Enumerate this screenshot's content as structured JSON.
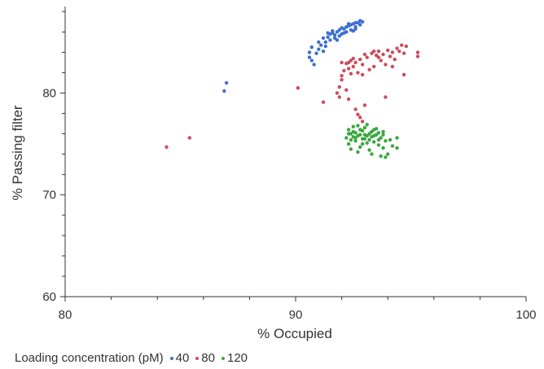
{
  "chart_data": {
    "type": "scatter",
    "title": "",
    "xlabel": "% Occupied",
    "ylabel": "% Passing filter",
    "xlim": [
      80,
      100
    ],
    "ylim": [
      60,
      88.5
    ],
    "x_ticks": [
      80,
      90,
      100
    ],
    "y_ticks": [
      60,
      70,
      80
    ],
    "grid": false,
    "legend": {
      "title": "Loading concentration (pM)",
      "placement": "bottom-left"
    },
    "series": [
      {
        "name": "40",
        "color": "#3e6fd1",
        "points": [
          [
            86.9,
            80.2
          ],
          [
            87.0,
            81.0
          ],
          [
            90.6,
            83.5
          ],
          [
            90.6,
            84.0
          ],
          [
            90.7,
            83.2
          ],
          [
            90.8,
            82.8
          ],
          [
            90.7,
            84.5
          ],
          [
            90.9,
            83.9
          ],
          [
            91.0,
            84.3
          ],
          [
            91.1,
            84.7
          ],
          [
            91.2,
            84.1
          ],
          [
            91.3,
            85.0
          ],
          [
            91.3,
            84.6
          ],
          [
            91.4,
            85.5
          ],
          [
            91.5,
            85.2
          ],
          [
            91.6,
            85.9
          ],
          [
            91.7,
            85.4
          ],
          [
            91.8,
            86.0
          ],
          [
            91.9,
            85.6
          ],
          [
            91.9,
            86.2
          ],
          [
            92.0,
            85.8
          ],
          [
            92.1,
            86.3
          ],
          [
            92.2,
            86.0
          ],
          [
            92.3,
            86.6
          ],
          [
            92.4,
            86.2
          ],
          [
            92.5,
            86.8
          ],
          [
            92.6,
            86.5
          ],
          [
            92.7,
            86.9
          ],
          [
            92.8,
            86.7
          ],
          [
            92.9,
            87.0
          ],
          [
            91.5,
            85.8
          ],
          [
            91.7,
            85.7
          ],
          [
            92.0,
            86.4
          ],
          [
            92.2,
            86.5
          ],
          [
            92.4,
            86.7
          ],
          [
            92.6,
            86.3
          ],
          [
            92.8,
            87.1
          ],
          [
            91.2,
            85.4
          ],
          [
            91.0,
            85.0
          ],
          [
            91.8,
            85.2
          ],
          [
            92.1,
            85.9
          ],
          [
            92.6,
            86.9
          ],
          [
            91.4,
            85.9
          ],
          [
            91.6,
            86.1
          ],
          [
            92.3,
            86.8
          ],
          [
            92.5,
            86.1
          ]
        ]
      },
      {
        "name": "80",
        "color": "#cc4b5c",
        "points": [
          [
            84.4,
            74.7
          ],
          [
            85.4,
            75.6
          ],
          [
            90.1,
            80.5
          ],
          [
            91.2,
            79.1
          ],
          [
            91.8,
            80.0
          ],
          [
            91.9,
            79.6
          ],
          [
            91.9,
            80.6
          ],
          [
            92.0,
            81.3
          ],
          [
            92.0,
            81.7
          ],
          [
            92.1,
            82.2
          ],
          [
            92.2,
            82.9
          ],
          [
            92.3,
            82.4
          ],
          [
            92.4,
            81.9
          ],
          [
            92.4,
            83.2
          ],
          [
            92.5,
            82.6
          ],
          [
            92.6,
            83.0
          ],
          [
            92.7,
            82.0
          ],
          [
            92.8,
            83.3
          ],
          [
            92.9,
            82.8
          ],
          [
            92.2,
            80.3
          ],
          [
            92.3,
            79.4
          ],
          [
            92.6,
            78.4
          ],
          [
            92.8,
            77.6
          ],
          [
            92.9,
            77.2
          ],
          [
            92.7,
            77.9
          ],
          [
            93.0,
            78.8
          ],
          [
            93.1,
            83.5
          ],
          [
            93.2,
            82.3
          ],
          [
            93.3,
            83.9
          ],
          [
            93.4,
            82.6
          ],
          [
            93.5,
            83.7
          ],
          [
            93.6,
            84.1
          ],
          [
            93.7,
            83.2
          ],
          [
            93.8,
            83.8
          ],
          [
            93.9,
            82.8
          ],
          [
            94.0,
            84.2
          ],
          [
            94.1,
            83.6
          ],
          [
            94.2,
            84.0
          ],
          [
            94.3,
            83.3
          ],
          [
            94.4,
            84.4
          ],
          [
            94.5,
            84.1
          ],
          [
            94.6,
            84.7
          ],
          [
            94.7,
            83.9
          ],
          [
            94.8,
            84.6
          ],
          [
            94.7,
            81.8
          ],
          [
            95.3,
            84.0
          ],
          [
            95.3,
            83.6
          ],
          [
            93.9,
            79.6
          ],
          [
            92.5,
            83.4
          ],
          [
            93.0,
            83.8
          ],
          [
            92.3,
            83.0
          ],
          [
            93.6,
            83.5
          ],
          [
            94.2,
            82.6
          ],
          [
            92.9,
            81.8
          ],
          [
            93.4,
            84.1
          ],
          [
            92.0,
            83.0
          ]
        ]
      },
      {
        "name": "120",
        "color": "#3aa73e",
        "points": [
          [
            92.3,
            76.4
          ],
          [
            92.4,
            76.0
          ],
          [
            92.5,
            75.7
          ],
          [
            92.5,
            76.2
          ],
          [
            92.6,
            75.3
          ],
          [
            92.7,
            76.8
          ],
          [
            92.8,
            75.9
          ],
          [
            92.8,
            74.7
          ],
          [
            92.9,
            76.3
          ],
          [
            93.0,
            75.5
          ],
          [
            93.0,
            76.6
          ],
          [
            93.1,
            75.1
          ],
          [
            93.2,
            76.0
          ],
          [
            93.2,
            74.4
          ],
          [
            93.3,
            75.7
          ],
          [
            93.4,
            76.4
          ],
          [
            93.4,
            75.2
          ],
          [
            93.5,
            75.9
          ],
          [
            93.6,
            74.9
          ],
          [
            93.6,
            76.1
          ],
          [
            93.7,
            75.6
          ],
          [
            93.8,
            74.6
          ],
          [
            93.8,
            76.2
          ],
          [
            93.9,
            75.3
          ],
          [
            94.0,
            74.0
          ],
          [
            94.1,
            75.4
          ],
          [
            94.2,
            74.8
          ],
          [
            94.4,
            75.6
          ],
          [
            94.4,
            74.6
          ],
          [
            92.3,
            75.0
          ],
          [
            92.4,
            74.5
          ],
          [
            92.5,
            76.7
          ],
          [
            92.6,
            76.1
          ],
          [
            92.7,
            74.2
          ],
          [
            92.9,
            75.0
          ],
          [
            93.1,
            76.9
          ],
          [
            93.3,
            74.0
          ],
          [
            93.5,
            76.5
          ],
          [
            93.7,
            73.8
          ],
          [
            93.9,
            73.7
          ],
          [
            92.2,
            75.6
          ],
          [
            92.3,
            76.0
          ],
          [
            92.6,
            75.6
          ],
          [
            93.0,
            75.9
          ],
          [
            93.2,
            75.4
          ],
          [
            93.4,
            75.8
          ],
          [
            92.8,
            76.4
          ],
          [
            93.6,
            75.4
          ],
          [
            92.9,
            75.5
          ],
          [
            93.1,
            75.8
          ],
          [
            93.3,
            76.2
          ],
          [
            92.4,
            75.4
          ],
          [
            93.8,
            75.9
          ],
          [
            92.7,
            75.8
          ]
        ]
      }
    ]
  }
}
